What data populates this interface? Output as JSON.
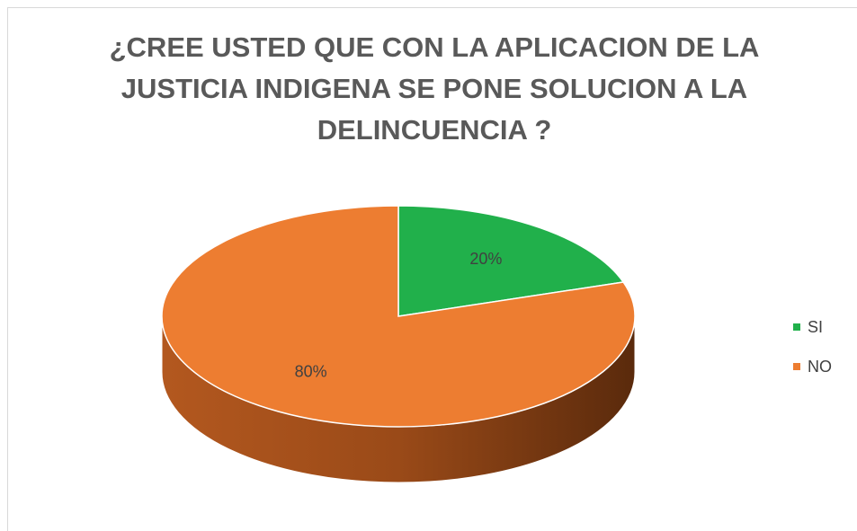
{
  "chart_data": {
    "type": "pie",
    "title": "¿CREE USTED QUE CON LA APLICACION DE LA JUSTICIA INDIGENA SE PONE SOLUCION A LA DELINCUENCIA ?",
    "categories": [
      "SI",
      "NO"
    ],
    "values": [
      20,
      80
    ],
    "value_labels": [
      "20%",
      "80%"
    ],
    "colors": [
      "#21b04b",
      "#ed7d31"
    ],
    "legend": "right"
  }
}
